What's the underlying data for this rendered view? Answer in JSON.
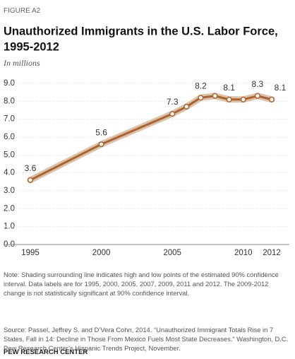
{
  "figure_label": "FIGURE A2",
  "chart_data": {
    "type": "line",
    "title": "Unauthorized Immigrants in the U.S. Labor Force,",
    "title_line2": "1995-2012",
    "subtitle": "In millions",
    "x": [
      1995,
      2000,
      2005,
      2006,
      2007,
      2008,
      2009,
      2010,
      2011,
      2012
    ],
    "series": [
      {
        "name": "Unauthorized immigrants in labor force",
        "color": "#b0622a",
        "values": [
          3.6,
          5.6,
          7.3,
          7.7,
          8.2,
          8.3,
          8.1,
          8.1,
          8.3,
          8.1
        ],
        "value_labels": [
          "3.6",
          "5.6",
          "7.3",
          null,
          "8.2",
          null,
          "8.1",
          null,
          "8.3",
          "8.1"
        ]
      }
    ],
    "band_color": "#d8c4ad",
    "xlim": [
      1995,
      2012
    ],
    "xticks": [
      1995,
      2000,
      2005,
      2010,
      2012
    ],
    "ylim": [
      0,
      9
    ],
    "yticks": [
      {
        "value": 0,
        "label": "0.0"
      },
      {
        "value": 1,
        "label": "1.0"
      },
      {
        "value": 2,
        "label": "2.0"
      },
      {
        "value": 3,
        "label": "3.0"
      },
      {
        "value": 4,
        "label": "4.0"
      },
      {
        "value": 5,
        "label": "5.0"
      },
      {
        "value": 6,
        "label": "6.0"
      },
      {
        "value": 7,
        "label": "7.0"
      },
      {
        "value": 8,
        "label": "8.0"
      },
      {
        "value": 9,
        "label": "9.0"
      }
    ],
    "grid": true
  },
  "note": "Note: Shading surrounding line indicates high and low points of the estimated 90% confidence interval. Data labels are for 1995, 2000, 2005, 2007, 2009, 2011 and 2012. The 2009-2012  change is not statistically significant at 90% confidence interval.",
  "source": "Source:  Passel, Jeffrey S. and D’Vera Cohn, 2014. “Unauthorized Immigrant Totals Rise in 7 States, Fall in 14: Decline in Those From Mexico Fuels Most State Decreases.” Washington, D.C. Pew Research Center’s Hispanic Trends Project, November.",
  "footer": "PEW RESEARCH CENTER"
}
